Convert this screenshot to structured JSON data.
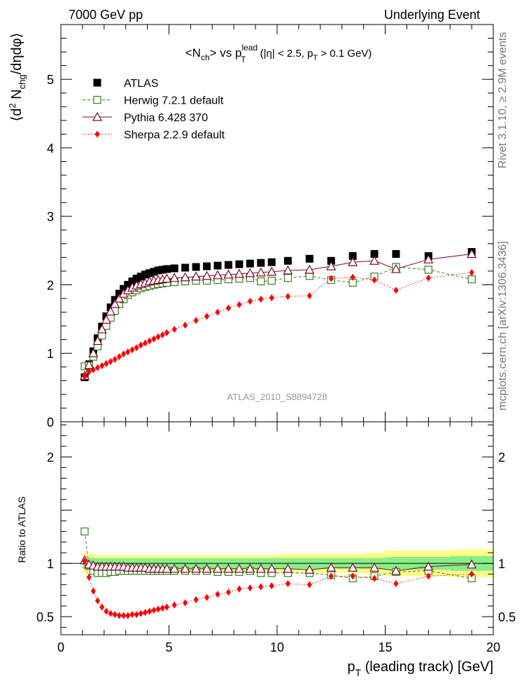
{
  "header": {
    "left": "7000 GeV pp",
    "right": "Underlying Event",
    "side_top": "Rivet 3.1.10, ≥ 2.9M events",
    "side_bottom": "mcplots.cern.ch [arXiv:1306.3436]",
    "analysis": "ATLAS_2010_S8894728"
  },
  "colors": {
    "atlas": "#000000",
    "herwig": "#3a7d1e",
    "pythia": "#7a0a2a",
    "sherpa": "#ff0000",
    "band_outer": "#ffff88",
    "band_inner": "#88ee88"
  },
  "chart_data": [
    {
      "type": "scatter",
      "title": "<Nch> vs pT lead (|η| < 2.5, pT > 0.1 GeV)",
      "ylabel": "⟨d² Nchg/dηdφ⟩",
      "xlim": [
        0,
        20
      ],
      "ylim": [
        0,
        5.8
      ],
      "yticks": [
        "1",
        "2",
        "3",
        "4",
        "5"
      ],
      "legend_position": "top-left",
      "x": [
        1.1,
        1.3,
        1.5,
        1.7,
        1.9,
        2.1,
        2.3,
        2.5,
        2.7,
        2.9,
        3.1,
        3.3,
        3.5,
        3.7,
        3.9,
        4.1,
        4.3,
        4.5,
        4.7,
        4.9,
        5.25,
        5.75,
        6.25,
        6.75,
        7.25,
        7.75,
        8.25,
        8.75,
        9.25,
        9.75,
        10.5,
        11.5,
        12.5,
        13.5,
        14.5,
        15.5,
        17.0,
        19.0
      ],
      "series": [
        {
          "name": "ATLAS",
          "values": [
            0.65,
            0.84,
            1.03,
            1.22,
            1.39,
            1.54,
            1.67,
            1.78,
            1.87,
            1.94,
            2.0,
            2.05,
            2.09,
            2.12,
            2.15,
            2.17,
            2.19,
            2.21,
            2.22,
            2.23,
            2.24,
            2.25,
            2.26,
            2.27,
            2.28,
            2.29,
            2.3,
            2.31,
            2.32,
            2.33,
            2.35,
            2.38,
            2.35,
            2.42,
            2.45,
            2.45,
            2.42,
            2.48
          ]
        },
        {
          "name": "Herwig 7.2.1 default",
          "values": [
            0.81,
            0.82,
            0.95,
            1.1,
            1.26,
            1.4,
            1.52,
            1.62,
            1.72,
            1.79,
            1.85,
            1.89,
            1.92,
            1.95,
            1.97,
            1.98,
            2.0,
            2.01,
            2.02,
            2.03,
            2.04,
            2.05,
            2.06,
            2.06,
            2.07,
            2.08,
            2.09,
            2.1,
            2.05,
            2.06,
            2.1,
            2.13,
            2.07,
            2.03,
            2.12,
            2.26,
            2.22,
            2.08
          ]
        },
        {
          "name": "Pythia 6.428 370",
          "values": [
            0.67,
            0.83,
            1.0,
            1.18,
            1.35,
            1.49,
            1.61,
            1.72,
            1.8,
            1.87,
            1.92,
            1.96,
            1.99,
            2.01,
            2.03,
            2.05,
            2.06,
            2.07,
            2.08,
            2.09,
            2.1,
            2.11,
            2.12,
            2.13,
            2.14,
            2.15,
            2.16,
            2.17,
            2.18,
            2.19,
            2.21,
            2.22,
            2.27,
            2.33,
            2.35,
            2.23,
            2.37,
            2.45
          ]
        },
        {
          "name": "Sherpa 2.2.9 default",
          "values": [
            0.66,
            0.73,
            0.76,
            0.79,
            0.82,
            0.85,
            0.88,
            0.91,
            0.95,
            0.99,
            1.02,
            1.05,
            1.08,
            1.12,
            1.15,
            1.18,
            1.21,
            1.24,
            1.27,
            1.3,
            1.35,
            1.41,
            1.48,
            1.54,
            1.6,
            1.66,
            1.71,
            1.76,
            1.79,
            1.81,
            1.83,
            1.84,
            2.09,
            2.11,
            2.07,
            1.92,
            2.1,
            2.18
          ]
        }
      ]
    },
    {
      "type": "scatter",
      "ylabel": "Ratio to ATLAS",
      "xlabel": "pT (leading track) [GeV]",
      "xlim": [
        0,
        20
      ],
      "ylim": [
        0.33,
        2.33
      ],
      "xticks": [
        "0",
        "5",
        "10",
        "15",
        "20"
      ],
      "yticks": [
        "0.5",
        "1",
        "2"
      ],
      "x": [
        1.1,
        1.3,
        1.5,
        1.7,
        1.9,
        2.1,
        2.3,
        2.5,
        2.7,
        2.9,
        3.1,
        3.3,
        3.5,
        3.7,
        3.9,
        4.1,
        4.3,
        4.5,
        4.7,
        4.9,
        5.25,
        5.75,
        6.25,
        6.75,
        7.25,
        7.75,
        8.25,
        8.75,
        9.25,
        9.75,
        10.5,
        11.5,
        12.5,
        13.5,
        14.5,
        15.5,
        17.0,
        19.0
      ],
      "band_outer": [
        0.1,
        0.09,
        0.09,
        0.08,
        0.08,
        0.08,
        0.08,
        0.08,
        0.08,
        0.08,
        0.08,
        0.08,
        0.08,
        0.08,
        0.08,
        0.08,
        0.08,
        0.08,
        0.08,
        0.08,
        0.08,
        0.08,
        0.08,
        0.08,
        0.08,
        0.08,
        0.08,
        0.08,
        0.08,
        0.08,
        0.09,
        0.09,
        0.09,
        0.09,
        0.1,
        0.12,
        0.12,
        0.13
      ],
      "band_inner": [
        0.05,
        0.05,
        0.05,
        0.05,
        0.05,
        0.05,
        0.05,
        0.05,
        0.05,
        0.05,
        0.05,
        0.05,
        0.05,
        0.05,
        0.05,
        0.05,
        0.05,
        0.05,
        0.05,
        0.05,
        0.05,
        0.05,
        0.05,
        0.05,
        0.05,
        0.05,
        0.05,
        0.05,
        0.05,
        0.05,
        0.05,
        0.05,
        0.05,
        0.05,
        0.05,
        0.06,
        0.06,
        0.07
      ],
      "series": [
        {
          "name": "Herwig 7.2.1 default",
          "values": [
            1.3,
            0.98,
            0.93,
            0.91,
            0.91,
            0.91,
            0.92,
            0.92,
            0.93,
            0.93,
            0.93,
            0.93,
            0.93,
            0.93,
            0.93,
            0.93,
            0.93,
            0.93,
            0.93,
            0.93,
            0.93,
            0.93,
            0.93,
            0.93,
            0.92,
            0.92,
            0.92,
            0.93,
            0.91,
            0.91,
            0.91,
            0.91,
            0.89,
            0.86,
            0.88,
            0.92,
            0.93,
            0.86
          ]
        },
        {
          "name": "Pythia 6.428 370",
          "values": [
            1.03,
            0.99,
            0.98,
            0.97,
            0.97,
            0.97,
            0.97,
            0.97,
            0.97,
            0.97,
            0.96,
            0.96,
            0.96,
            0.96,
            0.96,
            0.95,
            0.95,
            0.95,
            0.95,
            0.95,
            0.95,
            0.95,
            0.95,
            0.95,
            0.95,
            0.95,
            0.95,
            0.95,
            0.95,
            0.95,
            0.95,
            0.94,
            0.96,
            0.96,
            0.96,
            0.93,
            0.97,
            0.99
          ]
        },
        {
          "name": "Sherpa 2.2.9 default",
          "values": [
            1.02,
            0.87,
            0.74,
            0.65,
            0.59,
            0.55,
            0.53,
            0.52,
            0.51,
            0.51,
            0.51,
            0.52,
            0.52,
            0.53,
            0.54,
            0.55,
            0.56,
            0.57,
            0.58,
            0.59,
            0.61,
            0.63,
            0.66,
            0.68,
            0.71,
            0.73,
            0.76,
            0.77,
            0.78,
            0.79,
            0.81,
            0.8,
            0.88,
            0.88,
            0.86,
            0.81,
            0.88,
            0.9
          ]
        }
      ]
    }
  ]
}
